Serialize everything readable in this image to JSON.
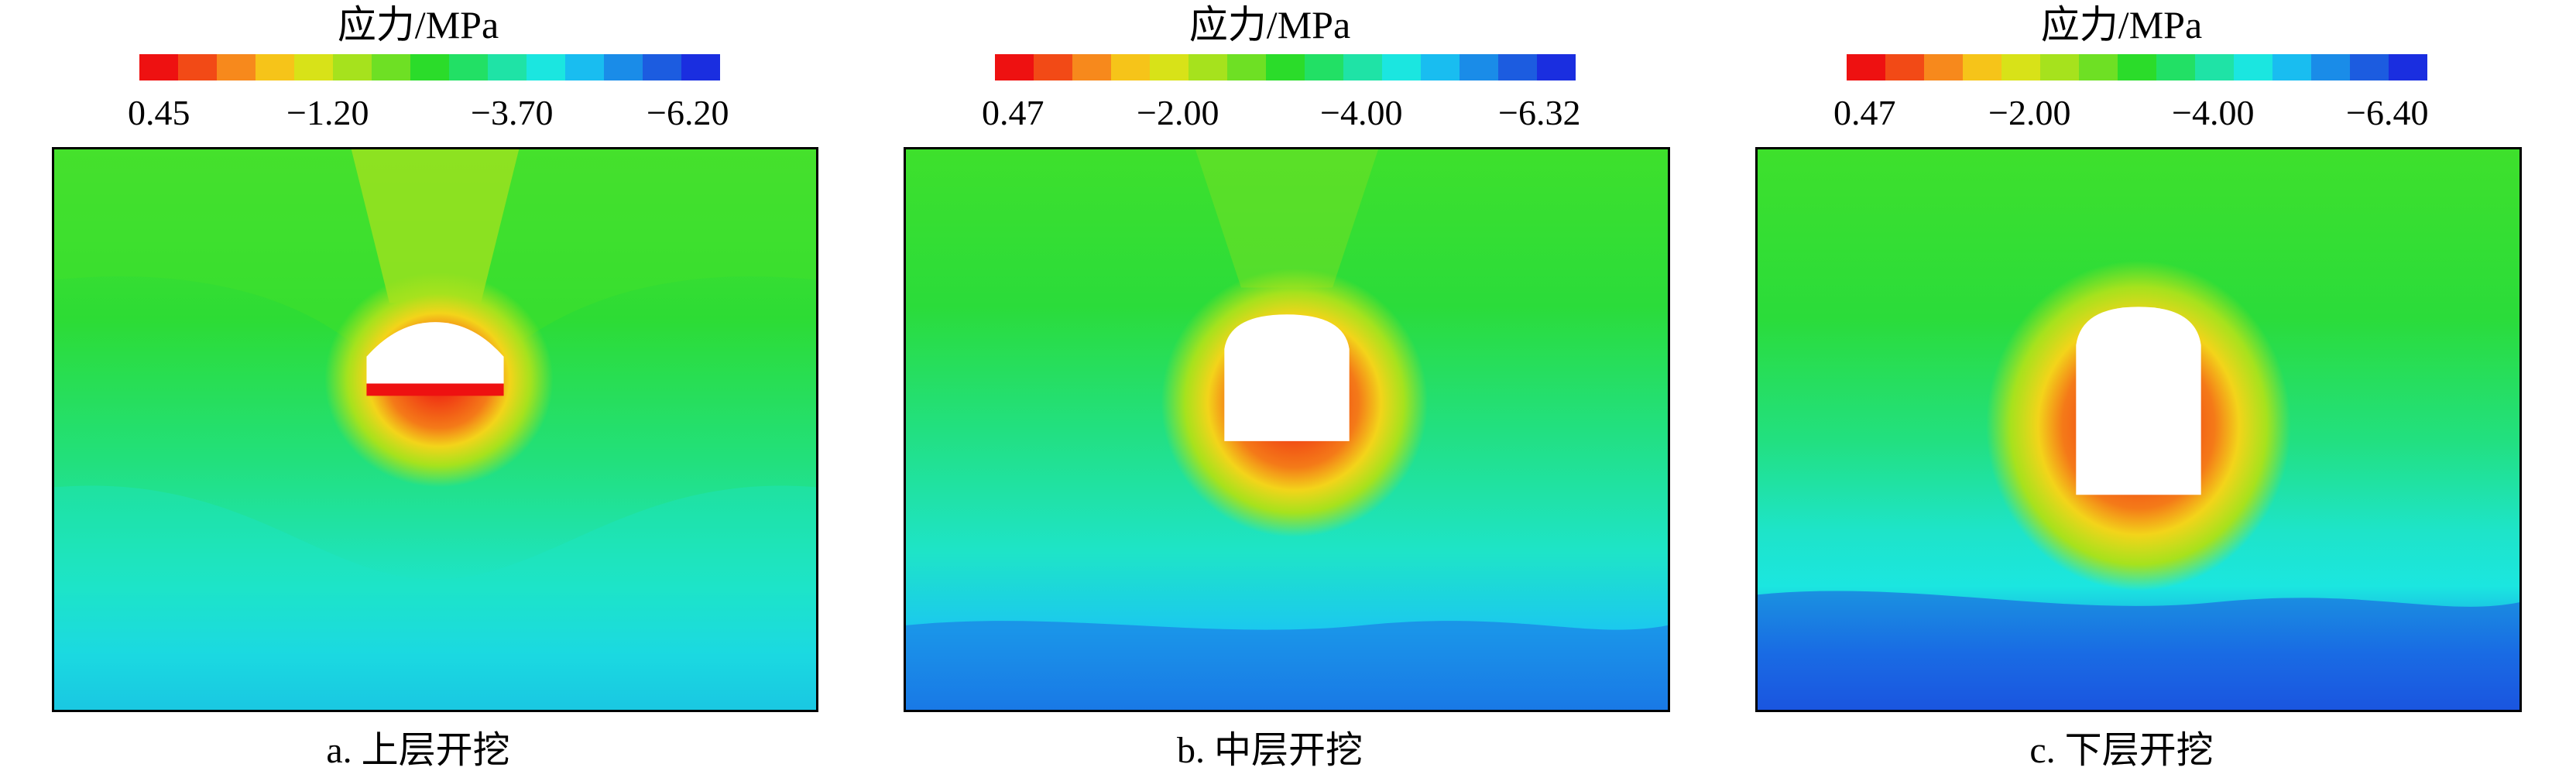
{
  "colorbar_colors": [
    "#ee1111",
    "#f24a16",
    "#f7891c",
    "#f6c419",
    "#d8e218",
    "#a6e21d",
    "#6ee024",
    "#2bdc2a",
    "#22e065",
    "#1fe3a6",
    "#1be6e0",
    "#19bdf0",
    "#1a8ce8",
    "#1c5ce0",
    "#1a2ee0"
  ],
  "panels": [
    {
      "colorbar_title": "应力/MPa",
      "ticks": [
        "0.45",
        "−1.20",
        "−3.70",
        "−6.20"
      ],
      "caption": "a. 上层开挖"
    },
    {
      "colorbar_title": "应力/MPa",
      "ticks": [
        "0.47",
        "−2.00",
        "−4.00",
        "−6.32"
      ],
      "caption": "b. 中层开挖"
    },
    {
      "colorbar_title": "应力/MPa",
      "ticks": [
        "0.47",
        "−2.00",
        "−4.00",
        "−6.40"
      ],
      "caption": "c. 下层开挖"
    }
  ]
}
